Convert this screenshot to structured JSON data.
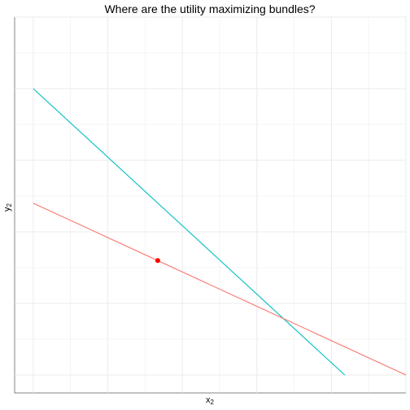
{
  "chart_data": {
    "type": "line",
    "title": "Where are the utility maximizing bundles?",
    "xlabel": {
      "base": "x",
      "sub": "2"
    },
    "ylabel": {
      "base": "y",
      "sub": "2"
    },
    "xlim": [
      -0.25,
      5
    ],
    "ylim": [
      -0.25,
      5
    ],
    "grid": true,
    "legend": "none",
    "series": [
      {
        "color": "#00BFC4",
        "x": [
          0,
          4.18
        ],
        "y": [
          4,
          0
        ]
      },
      {
        "color": "#F8766D",
        "x": [
          0,
          5
        ],
        "y": [
          2.4,
          0
        ]
      }
    ],
    "points": [
      {
        "x": 1.67,
        "y": 1.6,
        "color": "#FF0000"
      }
    ]
  }
}
